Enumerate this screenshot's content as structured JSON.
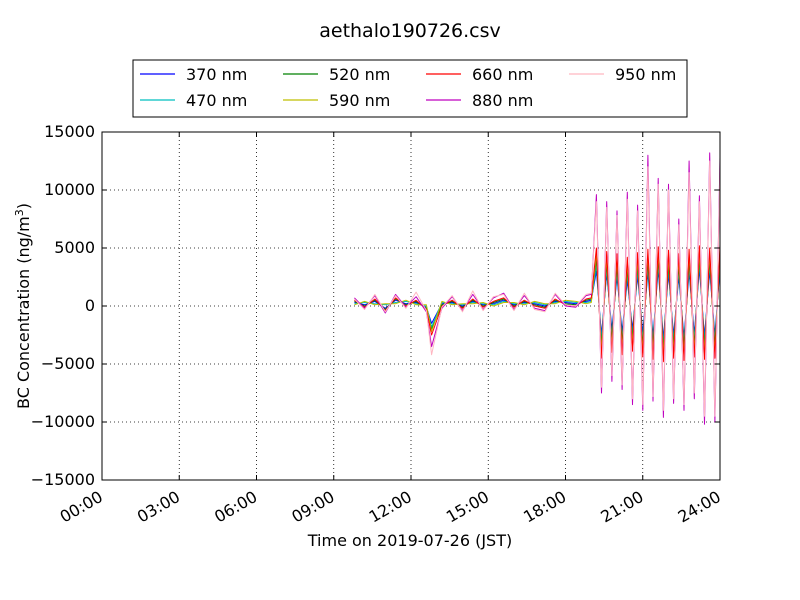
{
  "chart_data": {
    "type": "line",
    "title": "aethalo190726.csv",
    "xlabel": "Time on 2019-07-26 (JST)",
    "ylabel": "BC Concentration (ng/m³)",
    "ylabel_main": "BC Concentration (ng/m",
    "ylabel_sup": "3",
    "ylabel_end": ")",
    "xlim_hours": [
      0,
      24
    ],
    "ylim": [
      -15000,
      15000
    ],
    "grid": true,
    "legend_position": "top-center (above plot)",
    "x_ticks": [
      {
        "hour": 0,
        "label": "00:00"
      },
      {
        "hour": 3,
        "label": "03:00"
      },
      {
        "hour": 6,
        "label": "06:00"
      },
      {
        "hour": 9,
        "label": "09:00"
      },
      {
        "hour": 12,
        "label": "12:00"
      },
      {
        "hour": 15,
        "label": "15:00"
      },
      {
        "hour": 18,
        "label": "18:00"
      },
      {
        "hour": 21,
        "label": "21:00"
      },
      {
        "hour": 24,
        "label": "24:00"
      }
    ],
    "y_ticks": [
      {
        "value": 15000,
        "label": "15000"
      },
      {
        "value": 10000,
        "label": "10000"
      },
      {
        "value": 5000,
        "label": "5000"
      },
      {
        "value": 0,
        "label": "0"
      },
      {
        "value": -5000,
        "label": "−5000"
      },
      {
        "value": -10000,
        "label": "−10000"
      },
      {
        "value": -15000,
        "label": "−15000"
      }
    ],
    "series": [
      {
        "name": "370 nm",
        "color": "#0000ff",
        "x": [
          9.8,
          10.2,
          10.6,
          11.0,
          11.4,
          11.8,
          12.2,
          12.6,
          12.8,
          13.2,
          13.6,
          14.0,
          14.4,
          14.8,
          15.2,
          15.6,
          16.0,
          16.4,
          16.8,
          17.2,
          17.6,
          18.0,
          18.4,
          18.8,
          19.0,
          19.2,
          19.4,
          19.6,
          19.8,
          20.0,
          20.2,
          20.4,
          20.6,
          20.8,
          21.0,
          21.2,
          21.4,
          21.6,
          21.8,
          22.0,
          22.2,
          22.4,
          22.6,
          22.8,
          23.0,
          23.2,
          23.4,
          23.6,
          23.8,
          24.0
        ],
        "values": [
          300,
          100,
          400,
          -200,
          500,
          200,
          300,
          -100,
          -1500,
          200,
          300,
          0,
          400,
          100,
          200,
          500,
          100,
          300,
          200,
          0,
          400,
          300,
          200,
          400,
          500,
          3000,
          -2500,
          2800,
          -2000,
          2500,
          -2200,
          2200,
          -2000,
          2600,
          -2300,
          2900,
          -2600,
          3100,
          -2800,
          2800,
          -2500,
          2500,
          -2700,
          2900,
          -2400,
          3200,
          -2600,
          3000,
          -2500,
          3300
        ]
      },
      {
        "name": "470 nm",
        "color": "#00bfbf",
        "x": [
          9.8,
          10.2,
          10.6,
          11.0,
          11.4,
          11.8,
          12.2,
          12.6,
          12.8,
          13.2,
          13.6,
          14.0,
          14.4,
          14.8,
          15.2,
          15.6,
          16.0,
          16.4,
          16.8,
          17.2,
          17.6,
          18.0,
          18.4,
          18.8,
          19.0,
          19.2,
          19.4,
          19.6,
          19.8,
          20.0,
          20.2,
          20.4,
          20.6,
          20.8,
          21.0,
          21.2,
          21.4,
          21.6,
          21.8,
          22.0,
          22.2,
          22.4,
          22.6,
          22.8,
          23.0,
          23.2,
          23.4,
          23.6,
          23.8,
          24.0
        ],
        "values": [
          200,
          300,
          200,
          100,
          300,
          400,
          200,
          0,
          -1800,
          300,
          200,
          100,
          300,
          200,
          100,
          400,
          200,
          200,
          300,
          100,
          300,
          400,
          300,
          300,
          400,
          3500,
          -3000,
          3200,
          -2600,
          3000,
          -2800,
          2700,
          -2500,
          3100,
          -2900,
          3400,
          -3100,
          3600,
          -3300,
          3300,
          -3000,
          3000,
          -3200,
          3400,
          -2900,
          3700,
          -3100,
          3500,
          -3000,
          3800
        ]
      },
      {
        "name": "520 nm",
        "color": "#008000",
        "x": [
          9.8,
          10.2,
          10.6,
          11.0,
          11.4,
          11.8,
          12.2,
          12.6,
          12.8,
          13.2,
          13.6,
          14.0,
          14.4,
          14.8,
          15.2,
          15.6,
          16.0,
          16.4,
          16.8,
          17.2,
          17.6,
          18.0,
          18.4,
          18.8,
          19.0,
          19.2,
          19.4,
          19.6,
          19.8,
          20.0,
          20.2,
          20.4,
          20.6,
          20.8,
          21.0,
          21.2,
          21.4,
          21.6,
          21.8,
          22.0,
          22.2,
          22.4,
          22.6,
          22.8,
          23.0,
          23.2,
          23.4,
          23.6,
          23.8,
          24.0
        ],
        "values": [
          400,
          0,
          500,
          -300,
          600,
          100,
          400,
          -200,
          -2000,
          100,
          400,
          -100,
          500,
          0,
          300,
          600,
          0,
          400,
          100,
          -100,
          500,
          200,
          100,
          500,
          600,
          4000,
          -3500,
          3700,
          -3000,
          3500,
          -3200,
          3200,
          -2900,
          3600,
          -3400,
          3900,
          -3600,
          4100,
          -3800,
          3800,
          -3500,
          3500,
          -3700,
          3900,
          -3400,
          4200,
          -3600,
          4000,
          -3500,
          4300
        ]
      },
      {
        "name": "590 nm",
        "color": "#bfbf00",
        "x": [
          9.8,
          10.2,
          10.6,
          11.0,
          11.4,
          11.8,
          12.2,
          12.6,
          12.8,
          13.2,
          13.6,
          14.0,
          14.4,
          14.8,
          15.2,
          15.6,
          16.0,
          16.4,
          16.8,
          17.2,
          17.6,
          18.0,
          18.4,
          18.8,
          19.0,
          19.2,
          19.4,
          19.6,
          19.8,
          20.0,
          20.2,
          20.4,
          20.6,
          20.8,
          21.0,
          21.2,
          21.4,
          21.6,
          21.8,
          22.0,
          22.2,
          22.4,
          22.6,
          22.8,
          23.0,
          23.2,
          23.4,
          23.6,
          23.8,
          24.0
        ],
        "values": [
          100,
          400,
          100,
          200,
          200,
          500,
          100,
          100,
          -2200,
          400,
          100,
          200,
          200,
          300,
          0,
          300,
          300,
          100,
          400,
          200,
          200,
          500,
          400,
          200,
          300,
          4500,
          -4000,
          4200,
          -3500,
          4000,
          -3700,
          3700,
          -3400,
          4100,
          -3900,
          4400,
          -4100,
          4600,
          -4300,
          4300,
          -4000,
          4000,
          -4200,
          4400,
          -3900,
          4700,
          -4100,
          4500,
          -4000,
          4800
        ]
      },
      {
        "name": "660 nm",
        "color": "#ff0000",
        "x": [
          9.8,
          10.2,
          10.6,
          11.0,
          11.4,
          11.8,
          12.2,
          12.6,
          12.8,
          13.2,
          13.6,
          14.0,
          14.4,
          14.8,
          15.2,
          15.6,
          16.0,
          16.4,
          16.8,
          17.2,
          17.6,
          18.0,
          18.4,
          18.8,
          19.0,
          19.2,
          19.4,
          19.6,
          19.8,
          20.0,
          20.2,
          20.4,
          20.6,
          20.8,
          21.0,
          21.2,
          21.4,
          21.6,
          21.8,
          22.0,
          22.2,
          22.4,
          22.6,
          22.8,
          23.0,
          23.2,
          23.4,
          23.6,
          23.8,
          24.0
        ],
        "values": [
          500,
          -100,
          600,
          -400,
          700,
          0,
          500,
          -300,
          -2500,
          0,
          500,
          -200,
          600,
          -100,
          400,
          700,
          -100,
          500,
          0,
          -200,
          600,
          100,
          0,
          600,
          700,
          5000,
          -4500,
          4700,
          -4000,
          4500,
          -4200,
          4200,
          -3900,
          4600,
          -4400,
          4900,
          -4600,
          5100,
          -4800,
          4800,
          -4500,
          4500,
          -4700,
          4900,
          -4400,
          5200,
          -4600,
          5000,
          -4500,
          5300
        ]
      },
      {
        "name": "880 nm",
        "color": "#bf00bf",
        "x": [
          9.8,
          10.2,
          10.6,
          11.0,
          11.4,
          11.8,
          12.2,
          12.6,
          12.8,
          13.2,
          13.6,
          14.0,
          14.4,
          14.8,
          15.2,
          15.6,
          16.0,
          16.4,
          16.8,
          17.2,
          17.6,
          18.0,
          18.4,
          18.8,
          19.0,
          19.2,
          19.4,
          19.6,
          19.8,
          20.0,
          20.2,
          20.4,
          20.6,
          20.8,
          21.0,
          21.2,
          21.4,
          21.6,
          21.8,
          22.0,
          22.2,
          22.4,
          22.6,
          22.8,
          23.0,
          23.2,
          23.4,
          23.6,
          23.8,
          24.0
        ],
        "values": [
          700,
          -200,
          900,
          -600,
          1000,
          -100,
          800,
          -500,
          -3500,
          -200,
          800,
          -400,
          1000,
          -300,
          700,
          1100,
          -300,
          900,
          -200,
          -400,
          1000,
          0,
          -100,
          900,
          1000,
          9600,
          -7500,
          9000,
          -6500,
          8200,
          -7200,
          9800,
          -8500,
          8700,
          -9000,
          13000,
          -8200,
          11000,
          -9600,
          10500,
          -8400,
          7500,
          -9000,
          12500,
          -8000,
          9500,
          -10200,
          13200,
          -10000,
          12800
        ]
      },
      {
        "name": "950 nm",
        "color": "#ffb6c1",
        "x": [
          9.8,
          10.2,
          10.6,
          11.0,
          11.4,
          11.8,
          12.2,
          12.6,
          12.8,
          13.2,
          13.6,
          14.0,
          14.4,
          14.8,
          15.2,
          15.6,
          16.0,
          16.4,
          16.8,
          17.2,
          17.6,
          18.0,
          18.4,
          18.8,
          19.0,
          19.2,
          19.4,
          19.6,
          19.8,
          20.0,
          20.2,
          20.4,
          20.6,
          20.8,
          21.0,
          21.2,
          21.4,
          21.6,
          21.8,
          22.0,
          22.2,
          22.4,
          22.6,
          22.8,
          23.0,
          23.2,
          23.4,
          23.6,
          23.8,
          24.0
        ],
        "values": [
          600,
          -300,
          1000,
          -500,
          900,
          -200,
          1200,
          -400,
          -4200,
          -100,
          900,
          -500,
          1300,
          -400,
          800,
          1000,
          -400,
          1100,
          -300,
          -500,
          1100,
          100,
          0,
          1000,
          1100,
          9000,
          -7000,
          8500,
          -6000,
          7800,
          -6800,
          9200,
          -8000,
          8200,
          -8500,
          12000,
          -7800,
          10500,
          -9000,
          10000,
          -8000,
          7000,
          -8500,
          11500,
          -7500,
          9000,
          -9500,
          12500,
          -9500,
          12000
        ]
      }
    ]
  }
}
